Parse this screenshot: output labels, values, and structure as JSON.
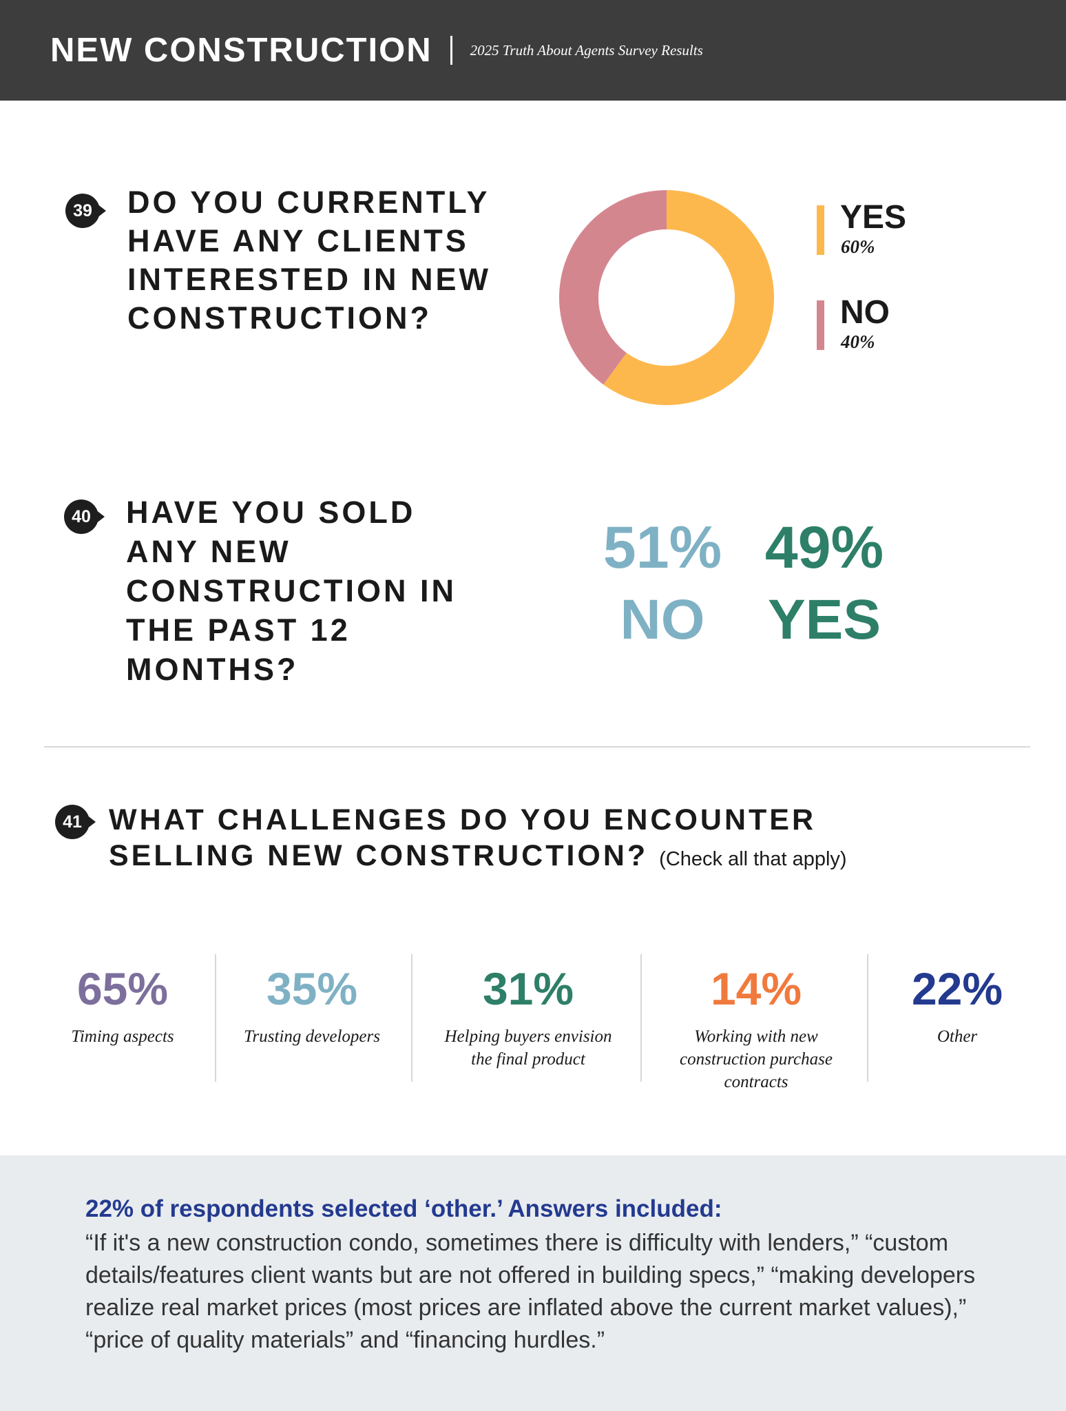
{
  "header": {
    "title": "NEW CONSTRUCTION",
    "subtitle": "2025 Truth About Agents Survey Results"
  },
  "q39": {
    "number": "39",
    "question": "DO YOU CURRENTLY HAVE ANY CLIENTS INTERESTED IN NEW CONSTRUCTION?",
    "yes_label": "YES",
    "yes_pct": "60%",
    "no_label": "NO",
    "no_pct": "40%",
    "yes_color": "#FDB84D",
    "no_color": "#D4868F"
  },
  "q40": {
    "number": "40",
    "question": "HAVE YOU SOLD ANY NEW CONSTRUCTION IN THE PAST 12 MONTHS?",
    "no_pct": "51%",
    "no_label": "NO",
    "yes_pct": "49%",
    "yes_label": "YES",
    "no_color": "#7FB1C4",
    "yes_color": "#2E7F68"
  },
  "q41": {
    "number": "41",
    "question": "WHAT CHALLENGES DO YOU ENCOUNTER SELLING NEW CONSTRUCTION?",
    "note": "(Check all that apply)",
    "items": [
      {
        "pct": "65%",
        "label": "Timing aspects",
        "color": "#7D6F9C"
      },
      {
        "pct": "35%",
        "label": "Trusting developers",
        "color": "#7FB1C4"
      },
      {
        "pct": "31%",
        "label": "Helping buyers envision the final product",
        "color": "#2E7F68"
      },
      {
        "pct": "14%",
        "label": "Working with new construction purchase contracts",
        "color": "#F07A3D"
      },
      {
        "pct": "22%",
        "label": "Other",
        "color": "#233A8F"
      }
    ]
  },
  "other_note": {
    "heading": "22% of respondents selected ‘other.’ Answers included:",
    "body": "“If it's a new construction condo, sometimes there is difficulty with lenders,” “custom details/features client wants but are not offered in building specs,” “making developers realize real market prices (most prices are inflated above the current market values),” “price of quality materials” and “financing hurdles.”"
  },
  "chart_data": [
    {
      "type": "pie",
      "title": "DO YOU CURRENTLY HAVE ANY CLIENTS INTERESTED IN NEW CONSTRUCTION?",
      "categories": [
        "YES",
        "NO"
      ],
      "values": [
        60,
        40
      ],
      "colors": [
        "#FDB84D",
        "#D4868F"
      ],
      "legend": "right"
    },
    {
      "type": "table",
      "title": "HAVE YOU SOLD ANY NEW CONSTRUCTION IN THE PAST 12 MONTHS?",
      "categories": [
        "NO",
        "YES"
      ],
      "values": [
        51,
        49
      ]
    },
    {
      "type": "table",
      "title": "WHAT CHALLENGES DO YOU ENCOUNTER SELLING NEW CONSTRUCTION?",
      "categories": [
        "Timing aspects",
        "Trusting developers",
        "Helping buyers envision the final product",
        "Working with new construction purchase contracts",
        "Other"
      ],
      "values": [
        65,
        35,
        31,
        14,
        22
      ]
    }
  ]
}
